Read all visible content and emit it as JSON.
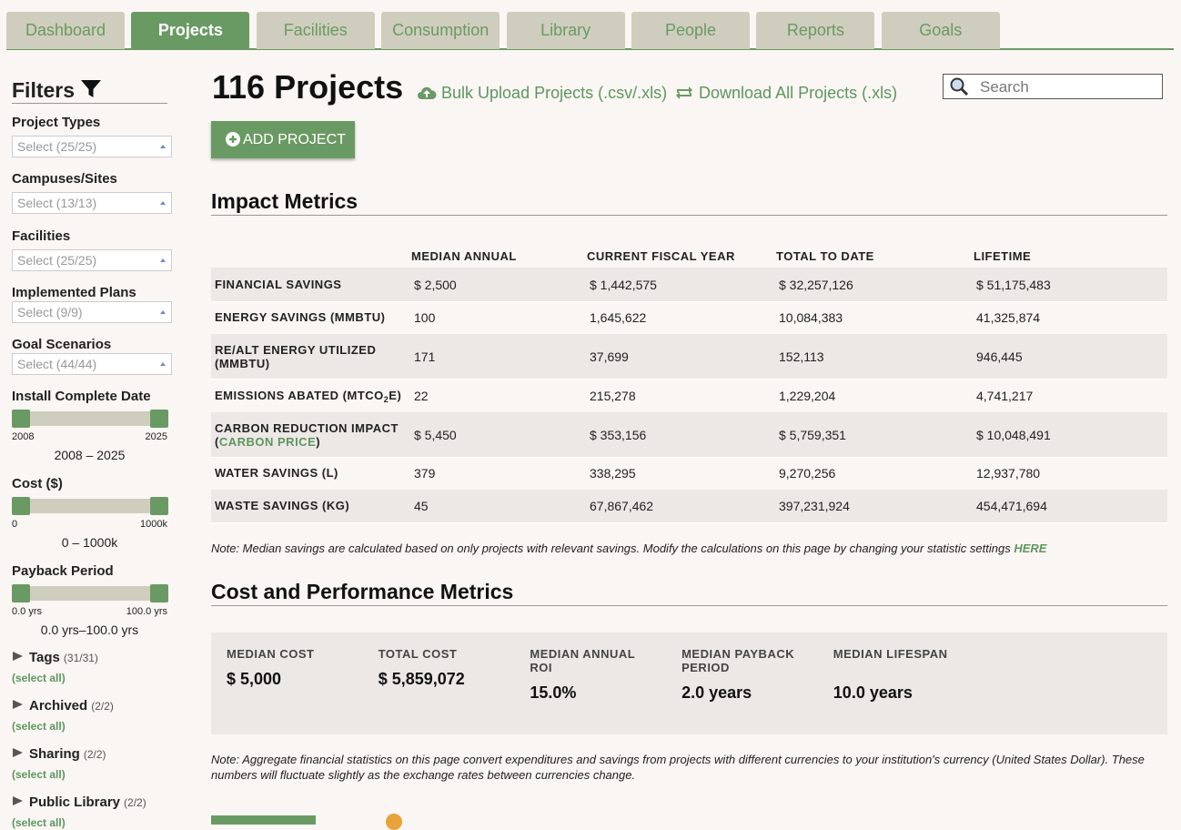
{
  "nav": {
    "tabs": [
      "Dashboard",
      "Projects",
      "Facilities",
      "Consumption",
      "Library",
      "People",
      "Reports",
      "Goals"
    ],
    "active": "Projects"
  },
  "sidebar": {
    "title": "Filters",
    "selects": [
      {
        "label": "Project Types",
        "value": "Select (25/25)"
      },
      {
        "label": "Campuses/Sites",
        "value": "Select (13/13)"
      },
      {
        "label": "Facilities",
        "value": "Select (25/25)"
      },
      {
        "label": "Implemented Plans",
        "value": "Select (9/9)"
      },
      {
        "label": "Goal Scenarios",
        "value": "Select (44/44)"
      }
    ],
    "sliders": [
      {
        "label": "Install Complete Date",
        "min": "2008",
        "max": "2025",
        "range": "2008 – 2025"
      },
      {
        "label": "Cost ($)",
        "min": "0",
        "max": "1000k",
        "range": "0 – 1000k"
      },
      {
        "label": "Payback Period",
        "min": "0.0 yrs",
        "max": "100.0 yrs",
        "range": "0.0 yrs–100.0 yrs"
      }
    ],
    "groups": [
      {
        "label": "Tags",
        "count": "(31/31)",
        "action": "(select all)"
      },
      {
        "label": "Archived",
        "count": "(2/2)",
        "action": "(select all)"
      },
      {
        "label": "Sharing",
        "count": "(2/2)",
        "action": "(select all)"
      },
      {
        "label": "Public Library",
        "count": "(2/2)",
        "action": "(select all)"
      }
    ]
  },
  "header": {
    "title": "116 Projects",
    "bulk_upload": "Bulk Upload Projects (.csv/.xls)",
    "download": "Download All Projects (.xls)",
    "search": "Search",
    "add_button": "ADD PROJECT"
  },
  "impact": {
    "title": "Impact Metrics",
    "columns": [
      "MEDIAN ANNUAL",
      "CURRENT FISCAL YEAR",
      "TOTAL TO DATE",
      "LIFETIME"
    ],
    "rows": [
      {
        "label": "FINANCIAL SAVINGS",
        "cells": [
          "$ 2,500",
          "$ 1,442,575",
          "$ 32,257,126",
          "$ 51,175,483"
        ]
      },
      {
        "label": "ENERGY SAVINGS (MMBTU)",
        "cells": [
          "100",
          "1,645,622",
          "10,084,383",
          "41,325,874"
        ]
      },
      {
        "label": "RE/ALT ENERGY UTILIZED (MMBTU)",
        "cells": [
          "171",
          "37,699",
          "152,113",
          "946,445"
        ]
      },
      {
        "label": "EMISSIONS ABATED (MTCO",
        "label_sub": "2",
        "label_end": "E)",
        "cells": [
          "22",
          "215,278",
          "1,229,204",
          "4,741,217"
        ]
      },
      {
        "label": "CARBON REDUCTION IMPACT (",
        "label_link": "CARBON PRICE",
        "label_end": ")",
        "cells": [
          "$ 5,450",
          "$ 353,156",
          "$ 5,759,351",
          "$ 10,048,491"
        ]
      },
      {
        "label": "WATER SAVINGS (L)",
        "cells": [
          "379",
          "338,295",
          "9,270,256",
          "12,937,780"
        ]
      },
      {
        "label": "WASTE SAVINGS (KG)",
        "cells": [
          "45",
          "67,867,462",
          "397,231,924",
          "454,471,694"
        ]
      }
    ],
    "note": "Note: Median savings are calculated based on only projects with relevant savings. Modify the calculations on this page by changing your statistic settings ",
    "note_link": "HERE"
  },
  "cost": {
    "title": "Cost and Performance Metrics",
    "cards": [
      {
        "label": "MEDIAN COST",
        "value": "$ 5,000"
      },
      {
        "label": "TOTAL COST",
        "value": "$ 5,859,072"
      },
      {
        "label": "MEDIAN ANNUAL ROI",
        "value": "15.0%"
      },
      {
        "label": "MEDIAN PAYBACK PERIOD",
        "value": "2.0 years"
      },
      {
        "label": "MEDIAN LIFESPAN",
        "value": "10.0 years"
      }
    ],
    "note": "Note: Aggregate financial statistics on this page convert expenditures and savings from projects with different currencies to your institution's currency (United States Dollar). These numbers will fluctuate slightly as the exchange rates between currencies change."
  }
}
